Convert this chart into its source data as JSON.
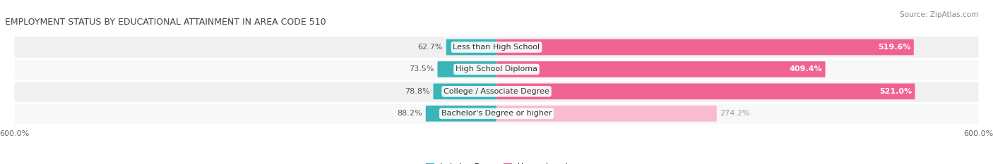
{
  "title": "EMPLOYMENT STATUS BY EDUCATIONAL ATTAINMENT IN AREA CODE 510",
  "source": "Source: ZipAtlas.com",
  "categories": [
    "Less than High School",
    "High School Diploma",
    "College / Associate Degree",
    "Bachelor's Degree or higher"
  ],
  "labor_force_values": [
    62.7,
    73.5,
    78.8,
    88.2
  ],
  "unemployed_values": [
    519.6,
    409.4,
    521.0,
    274.2
  ],
  "labor_force_color": "#3ab5b8",
  "unemployed_colors": [
    "#f06292",
    "#f06292",
    "#f06292",
    "#f8bbd0"
  ],
  "unemployed_label_colors": [
    "white",
    "white",
    "white",
    "#999999"
  ],
  "axis_max": 600.0,
  "background_color": "#ffffff",
  "row_bg_color": "#eeeeee",
  "row_sep_color": "#ffffff",
  "title_fontsize": 9,
  "source_fontsize": 7.5,
  "label_fontsize": 8,
  "tick_fontsize": 8,
  "bar_height": 0.72,
  "figsize": [
    14.06,
    2.33
  ],
  "dpi": 100
}
